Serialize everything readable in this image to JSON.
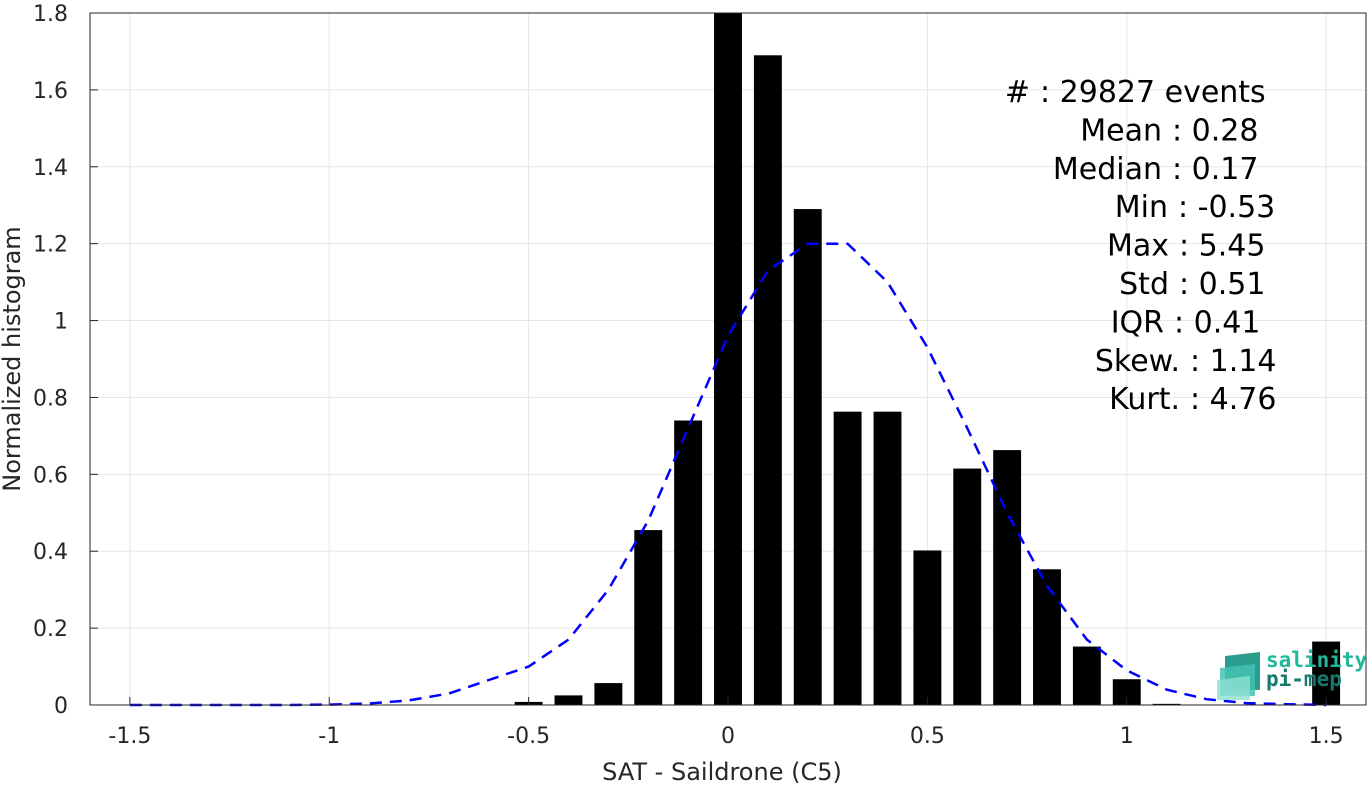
{
  "chart_data": {
    "type": "bar",
    "xlabel": "SAT - Saildrone (C5)",
    "ylabel": "Normalized histogram",
    "xlim": [
      -1.6,
      1.6
    ],
    "ylim": [
      0,
      1.8
    ],
    "grid": true,
    "xticks": [
      -1.5,
      -1,
      -0.5,
      0,
      0.5,
      1,
      1.5
    ],
    "xtick_labels": [
      "-1.5",
      "-1",
      "-0.5",
      "0",
      "0.5",
      "1",
      "1.5"
    ],
    "yticks": [
      0,
      0.2,
      0.4,
      0.6,
      0.8,
      1,
      1.2,
      1.4,
      1.6,
      1.8
    ],
    "ytick_labels": [
      "0",
      "0.2",
      "0.4",
      "0.6",
      "0.8",
      "1",
      "1.2",
      "1.4",
      "1.6",
      "1.8"
    ],
    "bar_width": 0.07,
    "bars": {
      "x": [
        -0.5,
        -0.4,
        -0.3,
        -0.2,
        -0.1,
        0,
        0.1,
        0.2,
        0.3,
        0.4,
        0.5,
        0.6,
        0.7,
        0.8,
        0.9,
        1.0,
        1.1,
        1.5
      ],
      "values": [
        0.008,
        0.025,
        0.057,
        0.455,
        0.74,
        1.8,
        1.69,
        1.29,
        0.763,
        0.763,
        0.402,
        0.615,
        0.663,
        0.353,
        0.152,
        0.067,
        0.003,
        0.165
      ],
      "color": "#000000"
    },
    "fit_curve": {
      "style": "dashed",
      "color": "#0000ff",
      "x": [
        -1.5,
        -1.4,
        -1.3,
        -1.2,
        -1.1,
        -1.0,
        -0.9,
        -0.8,
        -0.7,
        -0.6,
        -0.5,
        -0.4,
        -0.3,
        -0.2,
        -0.1,
        0.0,
        0.1,
        0.2,
        0.3,
        0.4,
        0.5,
        0.6,
        0.7,
        0.8,
        0.9,
        1.0,
        1.1,
        1.2,
        1.3,
        1.4,
        1.5
      ],
      "y": [
        0.0,
        0.0,
        0.0,
        0.0,
        0.0,
        0.001,
        0.004,
        0.012,
        0.03,
        0.065,
        0.1,
        0.17,
        0.3,
        0.48,
        0.72,
        0.96,
        1.13,
        1.2,
        1.2,
        1.1,
        0.93,
        0.72,
        0.5,
        0.31,
        0.17,
        0.09,
        0.04,
        0.015,
        0.005,
        0.002,
        0.0
      ]
    },
    "annotations": [
      "#  : 29827 events",
      "Mean : 0.28",
      "Median : 0.17",
      "Min : -0.53",
      "Max : 5.45",
      "Std : 0.51",
      "IQR : 0.41",
      "Skew. : 1.14",
      "Kurt. : 4.76"
    ]
  },
  "logo": {
    "line1": "salinity",
    "line2": "pi-mep",
    "color1": "#1fb89a",
    "color2": "#137a6c"
  }
}
